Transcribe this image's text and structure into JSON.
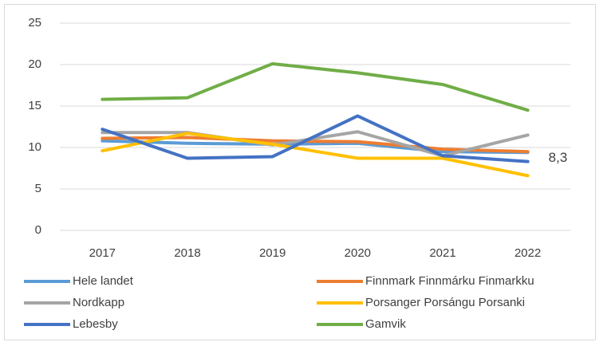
{
  "chart_data": {
    "type": "line",
    "categories": [
      "2017",
      "2018",
      "2019",
      "2020",
      "2021",
      "2022"
    ],
    "series": [
      {
        "name": "Hele landet",
        "color": "#5b9bd5",
        "values": [
          10.8,
          10.5,
          10.4,
          10.5,
          9.5,
          9.4
        ]
      },
      {
        "name": "Finnmark Finnmárku Finmarkku",
        "color": "#ed7d31",
        "values": [
          11.1,
          11.2,
          10.8,
          10.7,
          9.8,
          9.5
        ]
      },
      {
        "name": "Nordkapp",
        "color": "#a5a5a5",
        "values": [
          11.8,
          11.8,
          10.3,
          11.9,
          9.0,
          11.5
        ]
      },
      {
        "name": "Porsanger Porsángu Porsanki",
        "color": "#ffc000",
        "values": [
          9.6,
          11.7,
          10.4,
          8.7,
          8.7,
          6.6
        ]
      },
      {
        "name": "Lebesby",
        "color": "#4472c4",
        "values": [
          12.2,
          8.7,
          8.9,
          13.8,
          9.0,
          8.3
        ],
        "value_labels": [
          null,
          null,
          null,
          null,
          null,
          "8,3"
        ]
      },
      {
        "name": "Gamvik",
        "color": "#70ad47",
        "values": [
          15.8,
          16.0,
          20.1,
          19.0,
          17.6,
          14.5
        ]
      }
    ],
    "ylim": [
      0,
      25
    ],
    "yticks": [
      0,
      5,
      10,
      15,
      20,
      25
    ],
    "grid": true
  }
}
